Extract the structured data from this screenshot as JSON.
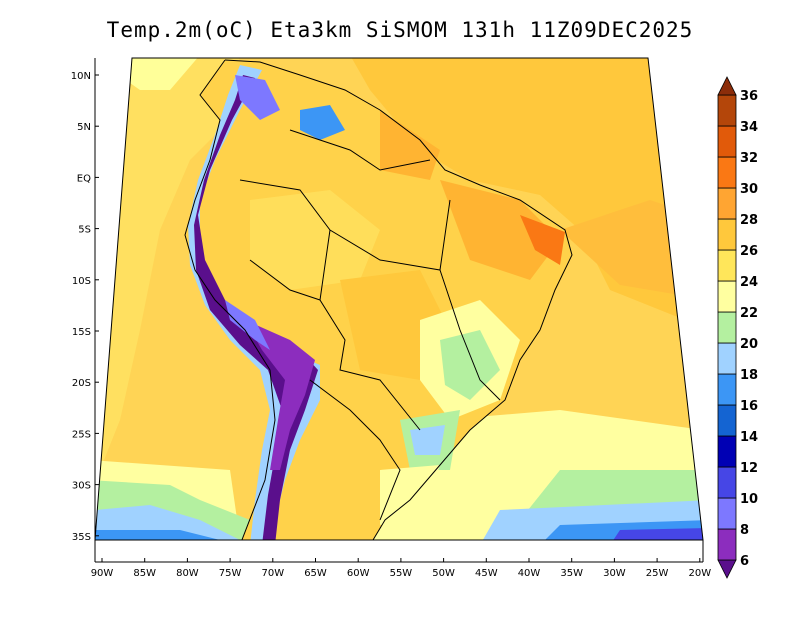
{
  "title": "Temp.2m(oC) Eta3km SiSMOM 131h 11Z09DEC2025",
  "map": {
    "lon_range": [
      -91,
      -19
    ],
    "lat_range": [
      -38,
      12
    ],
    "x_ticks": [
      "90W",
      "85W",
      "80W",
      "75W",
      "70W",
      "65W",
      "60W",
      "55W",
      "50W",
      "45W",
      "40W",
      "35W",
      "30W",
      "25W",
      "20W"
    ],
    "y_ticks": [
      "10N",
      "5N",
      "EQ",
      "5S",
      "10S",
      "15S",
      "20S",
      "25S",
      "30S",
      "35S"
    ],
    "field": "2 m air temperature"
  },
  "colorbar": {
    "unit": "oC",
    "labels": [
      "6",
      "8",
      "10",
      "12",
      "14",
      "16",
      "18",
      "20",
      "22",
      "24",
      "26",
      "28",
      "30",
      "32",
      "34",
      "36"
    ],
    "colors": [
      "#5a0f8c",
      "#8c2dbe",
      "#7d78ff",
      "#4646e6",
      "#0000b4",
      "#1464d2",
      "#3c96f5",
      "#a0d2ff",
      "#b4f0a0",
      "#ffffa0",
      "#ffe65a",
      "#ffc83c",
      "#ffa532",
      "#fa7814",
      "#e15a0a",
      "#b4460a",
      "#8c2d0a"
    ]
  }
}
